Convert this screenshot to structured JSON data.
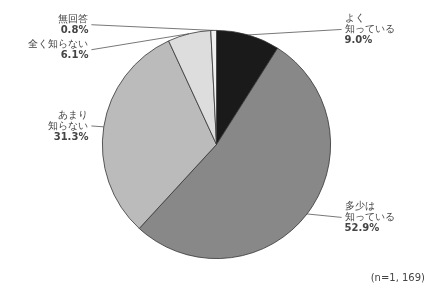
{
  "chart_data": {
    "type": "pie",
    "categories": [
      "よく\n知っている",
      "多少は\n知っている",
      "あまり\n知らない",
      "全く知らない",
      "無回答"
    ],
    "values": [
      9.0,
      52.9,
      31.3,
      6.1,
      0.8
    ],
    "value_labels": [
      "9.0%",
      "52.9%",
      "31.3%",
      "6.1%",
      "0.8%"
    ],
    "data_labels": true,
    "colors": [
      "#1a1a1a",
      "#888888",
      "#bbbbbb",
      "#dddddd",
      "#f0f0f0"
    ],
    "annotations": [
      "(n=1, 169)"
    ]
  }
}
